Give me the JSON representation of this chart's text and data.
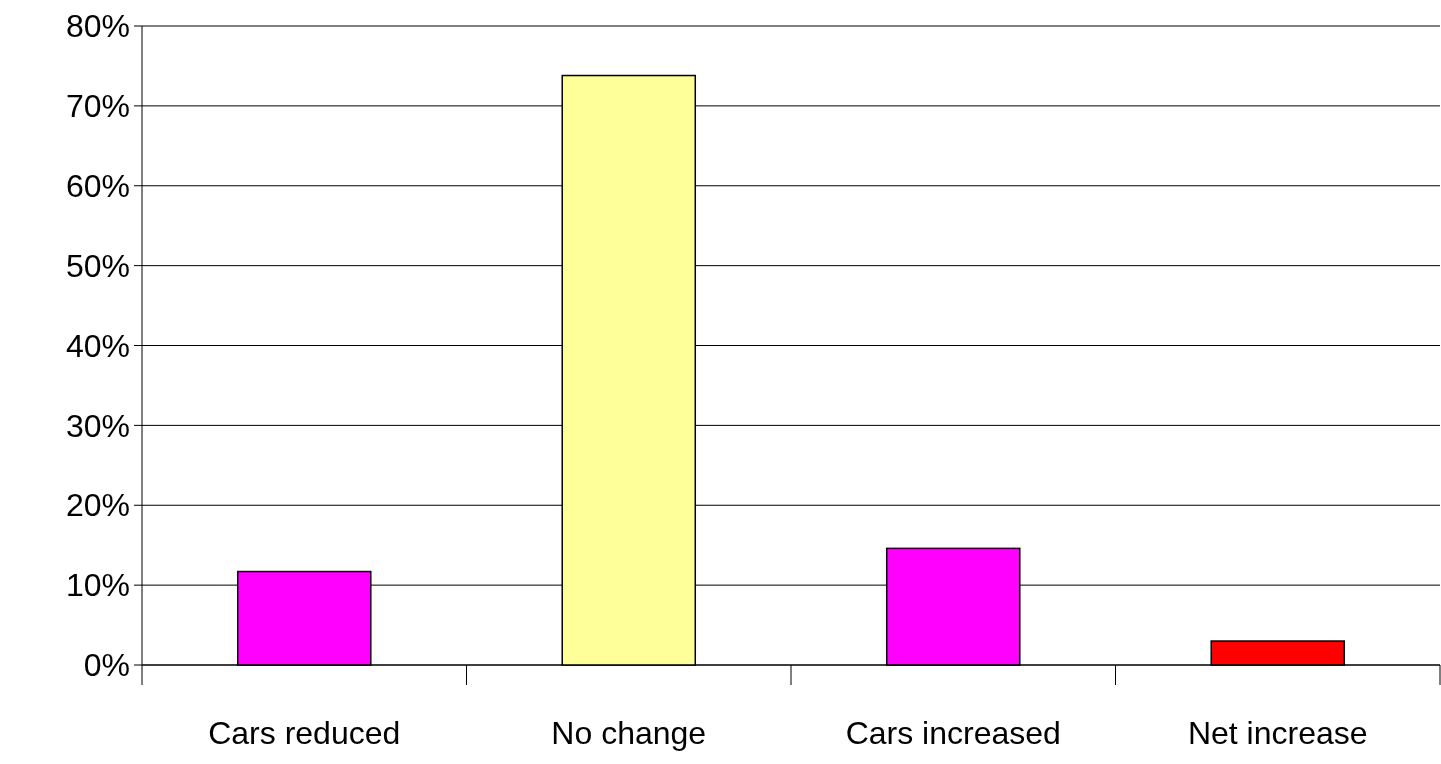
{
  "chart_data": {
    "type": "bar",
    "categories": [
      "Cars reduced",
      "No change",
      "Cars increased",
      "Net increase"
    ],
    "values": [
      11.7,
      73.8,
      14.6,
      3.0
    ],
    "colors": [
      "#ff00ff",
      "#ffff99",
      "#ff00ff",
      "#ff0000"
    ],
    "ylim": [
      0,
      80
    ],
    "yticks": [
      {
        "value": 0,
        "label": "0%"
      },
      {
        "value": 10,
        "label": "10%"
      },
      {
        "value": 20,
        "label": "20%"
      },
      {
        "value": 30,
        "label": "30%"
      },
      {
        "value": 40,
        "label": "40%"
      },
      {
        "value": 50,
        "label": "50%"
      },
      {
        "value": 60,
        "label": "60%"
      },
      {
        "value": 70,
        "label": "70%"
      },
      {
        "value": 80,
        "label": "80%"
      }
    ],
    "grid": "y"
  }
}
